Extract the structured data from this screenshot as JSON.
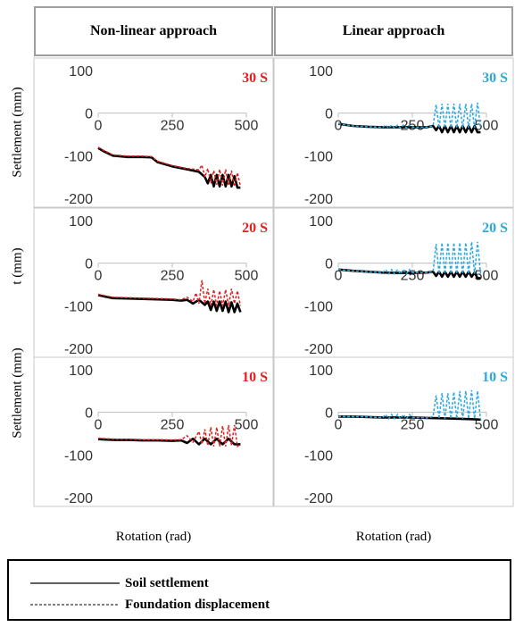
{
  "columns": [
    "Non-linear approach",
    "Linear approach"
  ],
  "y_axis_labels": [
    "Settlement (mm)",
    "t (mm)",
    "Settlement (mm)"
  ],
  "x_axis_labels": [
    "Rotation (rad)",
    "Rotation (rad)"
  ],
  "legend": [
    {
      "label": "Soil settlement",
      "style": "solid"
    },
    {
      "label": "Foundation displacement",
      "style": "dashed"
    }
  ],
  "colors": {
    "soil_settlement": "#000000",
    "nonlinear_foundation": "#e02020",
    "linear_foundation": "#29a9e0",
    "nonlinear_tag": "#e02020",
    "linear_tag": "#29a9e0",
    "grid_border": "#c8c8c8"
  },
  "chart_data": [
    {
      "type": "line",
      "tag": "30 S",
      "approach": "Non-linear approach",
      "xlim": [
        0,
        500
      ],
      "ylim": [
        -200,
        100
      ],
      "xticks": [
        "0",
        "250",
        "500"
      ],
      "yticks": [
        "100",
        "0",
        "-100",
        "-200"
      ],
      "series": [
        {
          "name": "Soil settlement",
          "x": [
            0,
            20,
            50,
            100,
            150,
            180,
            200,
            250,
            300,
            340,
            360,
            370,
            380,
            390,
            400,
            410,
            420,
            430,
            440,
            450,
            460,
            470,
            480
          ],
          "y": [
            -82,
            -90,
            -100,
            -103,
            -103,
            -104,
            -115,
            -125,
            -132,
            -138,
            -150,
            -165,
            -145,
            -172,
            -145,
            -172,
            -145,
            -172,
            -145,
            -172,
            -148,
            -175,
            -175
          ]
        },
        {
          "name": "Foundation displacement",
          "x": [
            0,
            20,
            50,
            100,
            150,
            180,
            200,
            250,
            300,
            340,
            350,
            360,
            370,
            380,
            390,
            400,
            410,
            420,
            430,
            440,
            450,
            460,
            470,
            480
          ],
          "y": [
            -80,
            -88,
            -98,
            -101,
            -101,
            -102,
            -113,
            -123,
            -130,
            -133,
            -122,
            -150,
            -130,
            -165,
            -135,
            -168,
            -132,
            -170,
            -132,
            -170,
            -135,
            -172,
            -140,
            -172
          ]
        }
      ]
    },
    {
      "type": "line",
      "tag": "30 S",
      "approach": "Linear approach",
      "xlim": [
        0,
        500
      ],
      "ylim": [
        -200,
        100
      ],
      "xticks": [
        "0",
        "250",
        "500"
      ],
      "yticks": [
        "100",
        "0",
        "-100",
        "-200"
      ],
      "series": [
        {
          "name": "Soil settlement",
          "x": [
            0,
            50,
            100,
            150,
            200,
            250,
            300,
            320,
            330,
            340,
            350,
            360,
            370,
            380,
            390,
            400,
            410,
            420,
            430,
            440,
            450,
            460,
            470,
            480
          ],
          "y": [
            -25,
            -30,
            -32,
            -33,
            -33,
            -33,
            -33,
            -30,
            -40,
            -30,
            -45,
            -30,
            -45,
            -30,
            -45,
            -30,
            -45,
            -30,
            -45,
            -30,
            -45,
            -30,
            -45,
            -45
          ]
        },
        {
          "name": "Foundation displacement",
          "x": [
            0,
            50,
            100,
            150,
            160,
            170,
            180,
            190,
            200,
            210,
            220,
            230,
            240,
            250,
            300,
            320,
            330,
            340,
            350,
            360,
            370,
            380,
            390,
            400,
            410,
            420,
            430,
            440,
            450,
            460,
            470,
            480
          ],
          "y": [
            -25,
            -30,
            -32,
            -33,
            -28,
            -35,
            -28,
            -35,
            -28,
            -35,
            -28,
            -35,
            -28,
            -33,
            -33,
            -30,
            20,
            -35,
            22,
            -35,
            22,
            -35,
            22,
            -35,
            22,
            -35,
            22,
            -35,
            22,
            -35,
            25,
            -35
          ]
        }
      ]
    },
    {
      "type": "line",
      "tag": "20 S",
      "approach": "Non-linear approach",
      "xlim": [
        0,
        500
      ],
      "ylim": [
        -200,
        100
      ],
      "xticks": [
        "0",
        "250",
        "500"
      ],
      "yticks": [
        "100",
        "0",
        "-100",
        "-200"
      ],
      "series": [
        {
          "name": "Soil settlement",
          "x": [
            0,
            20,
            50,
            100,
            150,
            200,
            250,
            280,
            300,
            320,
            340,
            360,
            370,
            380,
            390,
            400,
            410,
            420,
            430,
            440,
            450,
            460,
            470,
            480
          ],
          "y": [
            -75,
            -78,
            -82,
            -83,
            -84,
            -85,
            -86,
            -88,
            -86,
            -95,
            -86,
            -98,
            -90,
            -110,
            -90,
            -112,
            -90,
            -112,
            -90,
            -115,
            -92,
            -115,
            -95,
            -115
          ]
        },
        {
          "name": "Foundation displacement",
          "x": [
            0,
            20,
            50,
            100,
            150,
            200,
            250,
            280,
            300,
            320,
            330,
            340,
            350,
            360,
            370,
            380,
            390,
            400,
            410,
            420,
            430,
            440,
            450,
            460,
            470,
            480
          ],
          "y": [
            -73,
            -76,
            -80,
            -81,
            -82,
            -83,
            -84,
            -86,
            -80,
            -90,
            -70,
            -95,
            -40,
            -95,
            -60,
            -100,
            -62,
            -100,
            -65,
            -100,
            -62,
            -100,
            -60,
            -95,
            -65,
            -100
          ]
        }
      ]
    },
    {
      "type": "line",
      "tag": "20 S",
      "approach": "Linear approach",
      "xlim": [
        0,
        500
      ],
      "ylim": [
        -200,
        100
      ],
      "xticks": [
        "0",
        "250",
        "500"
      ],
      "yticks": [
        "100",
        "0",
        "-100",
        "-200"
      ],
      "series": [
        {
          "name": "Soil settlement",
          "x": [
            0,
            50,
            100,
            150,
            200,
            250,
            300,
            320,
            330,
            340,
            350,
            360,
            370,
            380,
            390,
            400,
            410,
            420,
            430,
            440,
            450,
            460,
            470,
            480
          ],
          "y": [
            -15,
            -18,
            -20,
            -22,
            -23,
            -23,
            -22,
            -20,
            -30,
            -20,
            -32,
            -20,
            -32,
            -20,
            -32,
            -20,
            -32,
            -20,
            -32,
            -20,
            -32,
            -22,
            -35,
            -35
          ]
        },
        {
          "name": "Foundation displacement",
          "x": [
            0,
            50,
            100,
            150,
            160,
            170,
            180,
            190,
            200,
            210,
            220,
            230,
            240,
            250,
            300,
            320,
            330,
            340,
            350,
            360,
            370,
            380,
            390,
            400,
            410,
            420,
            430,
            440,
            450,
            460,
            470,
            480
          ],
          "y": [
            -15,
            -18,
            -20,
            -22,
            -15,
            -25,
            -15,
            -25,
            -15,
            -25,
            -15,
            -25,
            -15,
            -22,
            -22,
            -20,
            45,
            -25,
            48,
            -25,
            48,
            -25,
            48,
            -25,
            48,
            -25,
            48,
            -25,
            50,
            -25,
            50,
            -25
          ]
        }
      ]
    },
    {
      "type": "line",
      "tag": "10 S",
      "approach": "Non-linear approach",
      "xlim": [
        0,
        500
      ],
      "ylim": [
        -200,
        100
      ],
      "xticks": [
        "0",
        "250",
        "500"
      ],
      "yticks": [
        "100",
        "0",
        "-100",
        "-200"
      ],
      "series": [
        {
          "name": "Soil settlement",
          "x": [
            0,
            30,
            60,
            100,
            150,
            200,
            250,
            280,
            300,
            320,
            340,
            360,
            380,
            400,
            420,
            440,
            460,
            480
          ],
          "y": [
            -63,
            -64,
            -65,
            -65,
            -66,
            -66,
            -67,
            -66,
            -72,
            -62,
            -75,
            -62,
            -75,
            -62,
            -75,
            -62,
            -75,
            -75
          ]
        },
        {
          "name": "Foundation displacement",
          "x": [
            0,
            30,
            60,
            100,
            150,
            200,
            250,
            280,
            300,
            320,
            340,
            350,
            360,
            370,
            380,
            390,
            400,
            410,
            420,
            430,
            440,
            450,
            460,
            470,
            480
          ],
          "y": [
            -61,
            -62,
            -63,
            -63,
            -64,
            -64,
            -65,
            -64,
            -55,
            -70,
            -45,
            -75,
            -40,
            -78,
            -35,
            -80,
            -35,
            -80,
            -32,
            -80,
            -30,
            -78,
            -30,
            -80,
            -75
          ]
        }
      ]
    },
    {
      "type": "line",
      "tag": "10 S",
      "approach": "Linear approach",
      "xlim": [
        0,
        500
      ],
      "ylim": [
        -200,
        100
      ],
      "xticks": [
        "0",
        "250",
        "500"
      ],
      "yticks": [
        "100",
        "0",
        "-100",
        "-200"
      ],
      "series": [
        {
          "name": "Soil settlement",
          "x": [
            0,
            50,
            100,
            150,
            200,
            250,
            300,
            350,
            400,
            450,
            480
          ],
          "y": [
            -10,
            -10,
            -11,
            -12,
            -12,
            -12,
            -13,
            -14,
            -15,
            -16,
            -17
          ]
        },
        {
          "name": "Foundation displacement",
          "x": [
            0,
            50,
            100,
            150,
            160,
            170,
            180,
            190,
            200,
            210,
            220,
            230,
            240,
            250,
            300,
            320,
            330,
            340,
            350,
            360,
            370,
            380,
            390,
            400,
            410,
            420,
            430,
            440,
            450,
            460,
            470,
            480
          ],
          "y": [
            -10,
            -10,
            -11,
            -12,
            -5,
            -15,
            -5,
            -15,
            -5,
            -15,
            -5,
            -15,
            -5,
            -12,
            -13,
            -10,
            40,
            -15,
            45,
            -15,
            45,
            -15,
            48,
            -15,
            50,
            -15,
            50,
            -15,
            52,
            -15,
            50,
            -17
          ]
        }
      ]
    }
  ]
}
